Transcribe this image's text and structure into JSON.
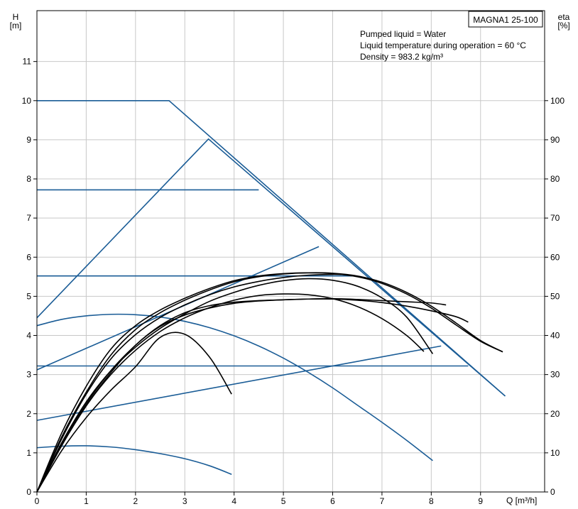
{
  "chart_data": {
    "type": "line",
    "model_label": "MAGNA1 25-100",
    "info": [
      "Pumped liquid = Water",
      "Liquid temperature during operation = 60 °C",
      "Density = 983.2 kg/m³"
    ],
    "y_title": [
      "H",
      "[m]"
    ],
    "y2_title": [
      "eta",
      "[%]"
    ],
    "x_title": "Q [m³/h]",
    "xlim": [
      0,
      10.3
    ],
    "ylim": [
      0,
      12.3
    ],
    "x_ticks": [
      "0",
      "1",
      "2",
      "3",
      "4",
      "5",
      "6",
      "7",
      "8",
      "9"
    ],
    "y_ticks": [
      "0",
      "1",
      "2",
      "3",
      "4",
      "5",
      "6",
      "7",
      "8",
      "9",
      "10",
      "11"
    ],
    "y2_ticks": [
      "0",
      "10",
      "20",
      "30",
      "40",
      "50",
      "60",
      "70",
      "80",
      "90",
      "100"
    ],
    "grid": true,
    "colors": {
      "head_curves": "#1a5c96",
      "efficiency_curves": "#000000",
      "grid": "#c8c8c8"
    },
    "head_series": [
      {
        "x": [
          0,
          2.68,
          9.5
        ],
        "y": [
          10.0,
          10.0,
          2.45
        ]
      },
      {
        "x": [
          0,
          3.48,
          9.5
        ],
        "y": [
          4.45,
          9.02,
          2.45
        ]
      },
      {
        "x": [
          0,
          4.5
        ],
        "y": [
          7.72,
          7.72
        ]
      },
      {
        "x": [
          0,
          5.72
        ],
        "y": [
          3.12,
          6.27
        ]
      },
      {
        "x": [
          0,
          6.45
        ],
        "y": [
          5.52,
          5.52
        ]
      },
      {
        "x": [
          0,
          8.75
        ],
        "y": [
          3.22,
          3.22
        ]
      },
      {
        "x": [
          0,
          8.2
        ],
        "y": [
          1.83,
          3.73
        ]
      },
      {
        "x": [
          0,
          0.5,
          1,
          1.5,
          2,
          2.5,
          3,
          3.5,
          4,
          4.5,
          5,
          5.5,
          6,
          6.5,
          7,
          7.5,
          8.03
        ],
        "y": [
          4.25,
          4.41,
          4.5,
          4.54,
          4.53,
          4.47,
          4.36,
          4.2,
          3.99,
          3.73,
          3.42,
          3.06,
          2.66,
          2.22,
          1.78,
          1.32,
          0.8
        ]
      },
      {
        "x": [
          0,
          0.5,
          1,
          1.5,
          2,
          2.5,
          3,
          3.5,
          3.95
        ],
        "y": [
          1.13,
          1.17,
          1.18,
          1.15,
          1.08,
          0.98,
          0.85,
          0.67,
          0.45
        ]
      }
    ],
    "efficiency_series": [
      {
        "x": [
          0,
          0.5,
          1,
          1.5,
          2,
          2.5,
          3,
          3.5,
          4,
          4.5,
          5,
          5.5,
          6,
          6.5,
          7,
          7.5,
          8,
          8.5,
          9,
          9.45
        ],
        "y": [
          0,
          15,
          27,
          36.5,
          42.5,
          46.5,
          49.5,
          52,
          54,
          55.2,
          55.8,
          56,
          55.8,
          55,
          53.3,
          50.6,
          47,
          42.7,
          38.5,
          35.8
        ]
      },
      {
        "x": [
          0,
          0.5,
          1,
          1.5,
          2,
          2.5,
          3,
          3.5,
          4,
          4.5,
          5,
          5.5,
          6,
          6.5,
          7,
          7.5,
          8,
          8.5,
          9,
          9.45
        ],
        "y": [
          0,
          14,
          25.5,
          35,
          41.5,
          45.8,
          49,
          51.6,
          53.7,
          55,
          55.7,
          56,
          55.9,
          55.2,
          53.6,
          51,
          47.5,
          43.2,
          38.7,
          35.8
        ]
      },
      {
        "x": [
          0,
          0.5,
          1,
          1.5,
          2,
          2.5,
          3,
          3.5,
          4,
          4.5,
          5,
          5.5,
          6,
          6.3
        ],
        "y": [
          0,
          13.5,
          25,
          34,
          40.2,
          44.6,
          47.8,
          50.4,
          52.4,
          53.8,
          54.8,
          55.4,
          55.6,
          55.5
        ]
      },
      {
        "x": [
          0,
          0.5,
          1,
          1.5,
          2,
          2.5,
          3,
          3.5,
          4,
          4.5,
          5,
          5.5,
          6,
          6.5,
          7,
          7.5,
          8.03
        ],
        "y": [
          0,
          12.5,
          23,
          31,
          37,
          41.8,
          45.5,
          48.7,
          51,
          52.8,
          54,
          54.5,
          54.1,
          52.6,
          49.6,
          44.7,
          35.3
        ]
      },
      {
        "x": [
          0,
          0.5,
          1,
          1.5,
          2,
          2.5,
          3,
          3.5,
          4,
          4.5,
          5,
          5.5,
          6,
          6.5,
          7,
          7.5,
          7.85
        ],
        "y": [
          0,
          11.8,
          22,
          30,
          36.2,
          41,
          44.5,
          47.1,
          49,
          50.2,
          50.6,
          50.4,
          49.4,
          47.4,
          44.3,
          40,
          35.9
        ]
      },
      {
        "x": [
          0,
          0.5,
          1,
          1.5,
          2,
          2.5,
          3,
          3.5,
          4,
          4.5,
          5,
          5.5,
          6,
          6.5,
          7,
          7.5,
          8,
          8.3
        ],
        "y": [
          0,
          12.2,
          22.5,
          31,
          37.5,
          42.5,
          45.8,
          47.6,
          48.5,
          48.9,
          49.1,
          49.3,
          49.4,
          49.2,
          48.9,
          48.6,
          48.3,
          47.8
        ]
      },
      {
        "x": [
          0,
          0.5,
          1,
          1.5,
          2,
          2.5,
          3,
          3.5,
          4,
          4.5,
          5,
          5.5,
          6,
          6.5,
          7,
          7.5,
          8,
          8.5,
          8.75
        ],
        "y": [
          0,
          11.8,
          22,
          30.5,
          37.5,
          42.3,
          45.2,
          47,
          48.2,
          48.8,
          49.1,
          49.3,
          49.3,
          49,
          48.4,
          47.5,
          46.3,
          44.8,
          43.4
        ]
      },
      {
        "x": [
          0,
          0.5,
          1,
          1.5,
          2,
          2.5,
          3,
          3.5,
          3.95
        ],
        "y": [
          0,
          10.5,
          19,
          26,
          32,
          39.5,
          40.3,
          34.5,
          25
        ]
      }
    ]
  }
}
